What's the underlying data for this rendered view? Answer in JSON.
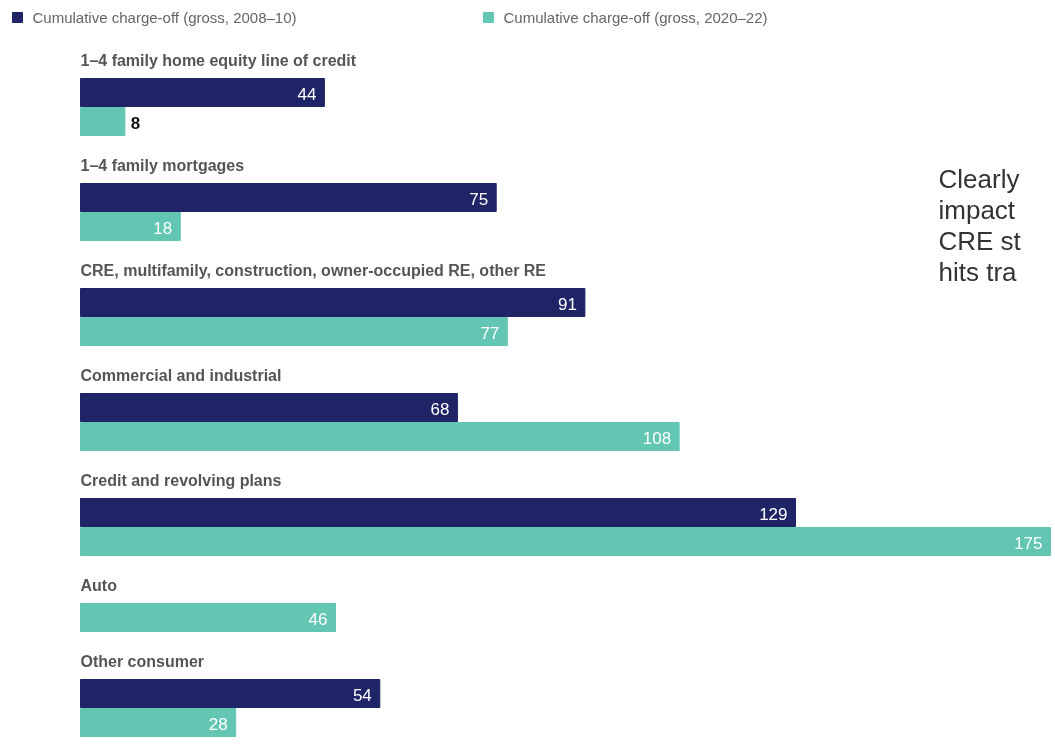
{
  "chart_data": {
    "type": "bar",
    "orientation": "horizontal",
    "categories": [
      "1–4 family home equity line of credit",
      "1–4 family mortgages",
      "CRE, multifamily, construction, owner-occupied RE, other RE",
      "Commercial and industrial",
      "Credit and revolving plans",
      "Auto",
      "Other consumer"
    ],
    "series": [
      {
        "name": "Cumulative charge-off (gross, 2008–10)",
        "color": "#1f2466",
        "values": [
          44,
          75,
          91,
          68,
          129,
          null,
          54
        ]
      },
      {
        "name": "Cumulative charge-off (gross, 2020–22)",
        "color": "#62c6b2",
        "values": [
          8,
          18,
          77,
          108,
          175,
          46,
          28
        ]
      }
    ],
    "data_labels": true,
    "legend": "top left",
    "grid": false,
    "annotations": [
      "Clearly\nimpact\nCRE st\nhits tra"
    ]
  }
}
